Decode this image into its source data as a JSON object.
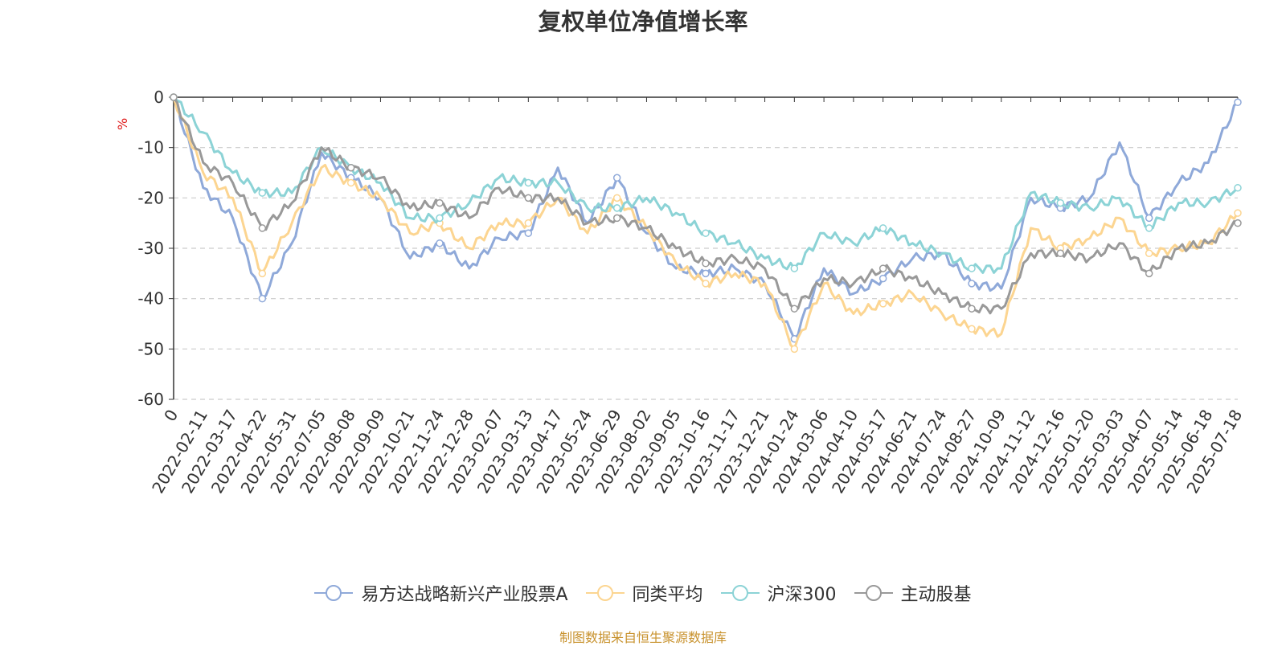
{
  "chart_data": {
    "type": "line",
    "title": "复权单位净值增长率",
    "ylabel": "%",
    "ylim": [
      -60,
      0
    ],
    "yticks": [
      0,
      -10,
      -20,
      -30,
      -40,
      -50,
      -60
    ],
    "grid": true,
    "legend_position": "bottom",
    "x_tick_labels": [
      "0",
      "2022-02-11",
      "2022-03-17",
      "2022-04-22",
      "2022-05-31",
      "2022-07-05",
      "2022-08-08",
      "2022-09-09",
      "2022-10-21",
      "2022-11-24",
      "2022-12-28",
      "2023-02-07",
      "2023-03-13",
      "2023-04-17",
      "2023-05-24",
      "2023-06-29",
      "2023-08-02",
      "2023-09-05",
      "2023-10-16",
      "2023-11-17",
      "2023-12-21",
      "2024-01-24",
      "2024-03-06",
      "2024-04-10",
      "2024-05-17",
      "2024-06-21",
      "2024-07-24",
      "2024-08-27",
      "2024-10-09",
      "2024-11-12",
      "2024-12-16",
      "2025-01-20",
      "2025-03-03",
      "2025-04-07",
      "2025-05-14",
      "2025-06-18",
      "2025-07-18"
    ],
    "x": [
      "2022-01-07",
      "2022-02-11",
      "2022-03-17",
      "2022-04-22",
      "2022-05-31",
      "2022-07-05",
      "2022-08-08",
      "2022-09-09",
      "2022-10-21",
      "2022-11-24",
      "2022-12-28",
      "2023-02-07",
      "2023-03-13",
      "2023-04-17",
      "2023-05-24",
      "2023-06-29",
      "2023-08-02",
      "2023-09-05",
      "2023-10-16",
      "2023-11-17",
      "2023-12-21",
      "2024-01-24",
      "2024-03-06",
      "2024-04-10",
      "2024-05-17",
      "2024-06-21",
      "2024-07-24",
      "2024-08-27",
      "2024-10-09",
      "2024-11-12",
      "2024-12-16",
      "2025-01-20",
      "2025-03-03",
      "2025-04-07",
      "2025-05-14",
      "2025-06-18",
      "2025-07-18"
    ],
    "series": [
      {
        "name": "易方达战略新兴产业股票A",
        "color": "#8fa9d9",
        "values": [
          0,
          -18,
          -24,
          -40,
          -29,
          -11,
          -16,
          -20,
          -32,
          -29,
          -34,
          -28,
          -27,
          -14,
          -25,
          -16,
          -27,
          -34,
          -35,
          -34,
          -37,
          -48,
          -34,
          -39,
          -36,
          -32,
          -31,
          -37,
          -38,
          -20,
          -22,
          -20,
          -9,
          -24,
          -17,
          -13,
          -1
        ]
      },
      {
        "name": "同类平均",
        "color": "#fcd591",
        "values": [
          0,
          -15,
          -20,
          -35,
          -25,
          -14,
          -17,
          -20,
          -27,
          -25,
          -30,
          -25,
          -25,
          -20,
          -27,
          -20,
          -26,
          -33,
          -37,
          -35,
          -37,
          -50,
          -37,
          -43,
          -41,
          -39,
          -43,
          -46,
          -47,
          -26,
          -30,
          -28,
          -24,
          -31,
          -30,
          -29,
          -23
        ]
      },
      {
        "name": "沪深300",
        "color": "#8cd3d6",
        "values": [
          0,
          -7,
          -15,
          -19,
          -19,
          -10,
          -14,
          -17,
          -24,
          -24,
          -21,
          -16,
          -17,
          -17,
          -22,
          -22,
          -20,
          -23,
          -27,
          -29,
          -32,
          -34,
          -27,
          -29,
          -26,
          -29,
          -31,
          -34,
          -34,
          -19,
          -21,
          -22,
          -20,
          -26,
          -21,
          -21,
          -18
        ]
      },
      {
        "name": "主动股基",
        "color": "#999999",
        "values": [
          0,
          -13,
          -17,
          -26,
          -21,
          -10,
          -14,
          -16,
          -22,
          -21,
          -24,
          -18,
          -20,
          -20,
          -25,
          -24,
          -26,
          -30,
          -33,
          -32,
          -34,
          -42,
          -36,
          -37,
          -34,
          -36,
          -39,
          -42,
          -42,
          -31,
          -31,
          -32,
          -29,
          -35,
          -30,
          -29,
          -25
        ]
      }
    ]
  },
  "source_note": "制图数据来自恒生聚源数据库"
}
